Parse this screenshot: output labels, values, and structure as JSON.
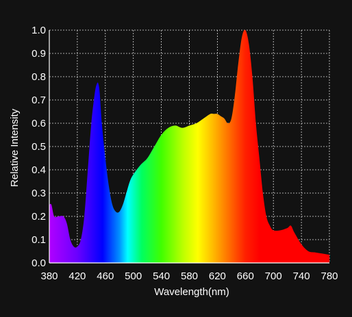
{
  "chart_data": {
    "type": "area",
    "title": "",
    "xlabel": "Wavelength(nm)",
    "ylabel": "Relative Intensity",
    "xlim": [
      380,
      780
    ],
    "ylim": [
      0,
      1.0
    ],
    "x_ticks": [
      "380",
      "420",
      "460",
      "500",
      "540",
      "580",
      "620",
      "660",
      "700",
      "740",
      "780"
    ],
    "y_ticks": [
      "0.0",
      "0.1",
      "0.2",
      "0.3",
      "0.4",
      "0.5",
      "0.6",
      "0.7",
      "0.8",
      "0.9",
      "1.0"
    ],
    "grid": true,
    "fill": "spectrum-gradient",
    "background_color": "#121212",
    "series": [
      {
        "x": [
          380,
          383,
          387,
          393,
          400,
          405,
          410,
          415,
          420,
          425,
          430,
          435,
          440,
          445,
          448,
          450,
          452,
          455,
          460,
          465,
          470,
          475,
          480,
          485,
          490,
          495,
          500,
          510,
          520,
          530,
          540,
          550,
          560,
          570,
          580,
          590,
          600,
          610,
          615,
          620,
          625,
          630,
          635,
          640,
          645,
          650,
          655,
          660,
          665,
          670,
          675,
          680,
          685,
          690,
          695,
          700,
          710,
          720,
          725,
          730,
          740,
          750,
          760,
          770,
          780
        ],
        "y": [
          0.25,
          0.25,
          0.2,
          0.2,
          0.2,
          0.17,
          0.1,
          0.07,
          0.07,
          0.1,
          0.2,
          0.4,
          0.6,
          0.73,
          0.77,
          0.77,
          0.73,
          0.6,
          0.45,
          0.33,
          0.25,
          0.22,
          0.22,
          0.25,
          0.3,
          0.35,
          0.38,
          0.42,
          0.45,
          0.5,
          0.55,
          0.58,
          0.59,
          0.58,
          0.59,
          0.6,
          0.62,
          0.64,
          0.64,
          0.64,
          0.63,
          0.62,
          0.6,
          0.62,
          0.72,
          0.86,
          0.97,
          1.0,
          0.94,
          0.8,
          0.6,
          0.45,
          0.3,
          0.2,
          0.16,
          0.14,
          0.14,
          0.15,
          0.16,
          0.13,
          0.08,
          0.05,
          0.045,
          0.04,
          0.035
        ]
      }
    ]
  }
}
